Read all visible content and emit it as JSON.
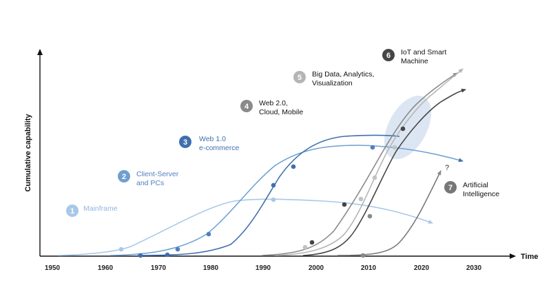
{
  "diagram": {
    "x_axis_label": "Time",
    "y_axis_label": "Cumulative capability",
    "x_ticks": [
      "1950",
      "1960",
      "1970",
      "1980",
      "1990",
      "2000",
      "2010",
      "2020",
      "2030"
    ],
    "eras": [
      {
        "number": "1",
        "lines": [
          "Mainframe"
        ],
        "color": "#a8c8e8"
      },
      {
        "number": "2",
        "lines": [
          "Client-Server",
          "and PCs"
        ],
        "color": "#6f9fd0"
      },
      {
        "number": "3",
        "lines": [
          "Web 1.0",
          "e-commerce"
        ],
        "color": "#3f6fae"
      },
      {
        "number": "4",
        "lines": [
          "Web 2.0,",
          "Cloud, Mobile"
        ],
        "color": "#8a8a8a"
      },
      {
        "number": "5",
        "lines": [
          "Big Data, Analytics,",
          "Visualization"
        ],
        "color": "#b5b5b5"
      },
      {
        "number": "6",
        "lines": [
          "IoT and Smart",
          "Machine"
        ],
        "color": "#454545"
      },
      {
        "number": "7",
        "lines": [
          "Artificial",
          "Intelligence"
        ],
        "color": "#777777"
      }
    ],
    "question_mark": "?",
    "highlight_color": "#dce6f3"
  }
}
